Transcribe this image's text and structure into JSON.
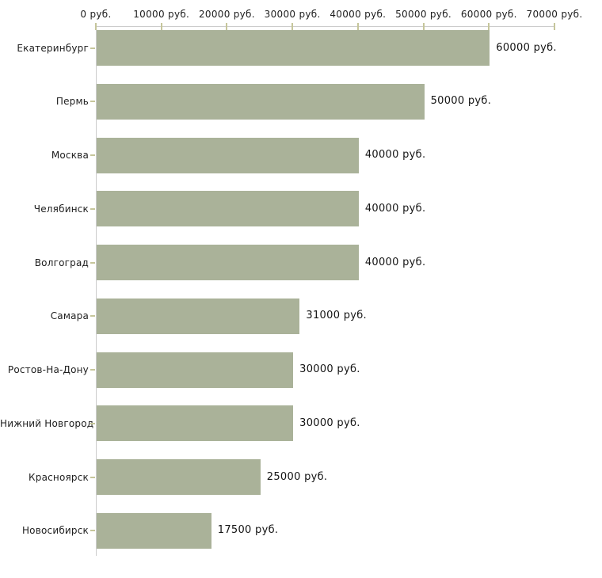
{
  "chart_data": {
    "type": "bar",
    "orientation": "horizontal",
    "title": "",
    "xlabel": "",
    "ylabel": "",
    "grid": false,
    "legend": null,
    "categories": [
      "Екатеринбург",
      "Пермь",
      "Москва",
      "Челябинск",
      "Волгоград",
      "Самара",
      "Ростов-На-Дону",
      "Нижний Новгород",
      "Красноярск",
      "Новосибирск"
    ],
    "values": [
      60000,
      50000,
      40000,
      40000,
      40000,
      31000,
      30000,
      30000,
      25000,
      17500
    ],
    "value_labels": [
      "60000 руб.",
      "50000 руб.",
      "40000 руб.",
      "40000 руб.",
      "40000 руб.",
      "31000 руб.",
      "30000 руб.",
      "30000 руб.",
      "25000 руб.",
      "17500 руб."
    ],
    "xlim": [
      0,
      70000
    ],
    "x_ticks": [
      0,
      10000,
      20000,
      30000,
      40000,
      50000,
      60000,
      70000
    ],
    "x_tick_labels": [
      "0 руб.",
      "10000 руб.",
      "20000 руб.",
      "30000 руб.",
      "40000 руб.",
      "50000 руб.",
      "60000 руб.",
      "70000 руб."
    ],
    "colors": {
      "bar": "#aab299",
      "axis_line": "#cccccc",
      "tick_mark": "#c6c69b",
      "text": "#1e1e1e"
    }
  }
}
